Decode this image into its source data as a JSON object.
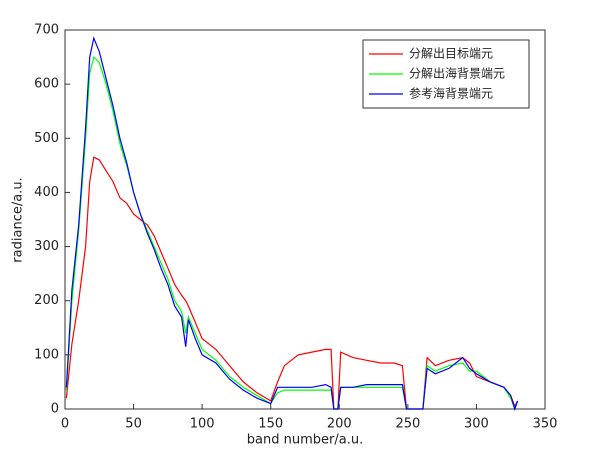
{
  "chart_data": {
    "type": "line",
    "xlabel": "band number/a.u.",
    "ylabel": "radiance/a.u.",
    "x": [
      1,
      5,
      10,
      15,
      18,
      21,
      25,
      30,
      35,
      40,
      45,
      50,
      55,
      60,
      65,
      70,
      75,
      80,
      85,
      88,
      90,
      95,
      100,
      110,
      120,
      130,
      140,
      150,
      155,
      160,
      170,
      180,
      190,
      194,
      196,
      199,
      201,
      210,
      220,
      230,
      240,
      246,
      249,
      261,
      264,
      270,
      280,
      290,
      295,
      300,
      310,
      320,
      325,
      328,
      330
    ],
    "series": [
      {
        "name": "分解出目标端元",
        "color": "#ff0000",
        "values": [
          20,
          120,
          200,
          300,
          420,
          465,
          460,
          440,
          420,
          390,
          380,
          360,
          350,
          340,
          320,
          290,
          260,
          230,
          210,
          200,
          190,
          160,
          130,
          110,
          80,
          50,
          30,
          15,
          50,
          80,
          100,
          105,
          110,
          110,
          0,
          0,
          105,
          95,
          90,
          85,
          85,
          80,
          0,
          0,
          95,
          80,
          90,
          95,
          85,
          60,
          50,
          40,
          25,
          5,
          15
        ]
      },
      {
        "name": "分解出海背景端元",
        "color": "#00ff00",
        "values": [
          35,
          200,
          330,
          500,
          620,
          650,
          640,
          600,
          550,
          490,
          450,
          400,
          360,
          330,
          300,
          270,
          240,
          200,
          180,
          140,
          170,
          140,
          110,
          90,
          60,
          40,
          25,
          10,
          30,
          35,
          35,
          35,
          35,
          35,
          0,
          0,
          40,
          40,
          40,
          40,
          40,
          40,
          0,
          0,
          80,
          70,
          80,
          85,
          70,
          70,
          50,
          40,
          20,
          0,
          15
        ]
      },
      {
        "name": "参考海背景端元",
        "color": "#0000ff",
        "values": [
          40,
          220,
          340,
          520,
          650,
          685,
          660,
          610,
          560,
          500,
          455,
          400,
          360,
          325,
          295,
          260,
          230,
          190,
          170,
          115,
          165,
          130,
          100,
          85,
          55,
          35,
          20,
          10,
          40,
          40,
          40,
          40,
          45,
          40,
          0,
          0,
          40,
          40,
          45,
          45,
          45,
          45,
          0,
          0,
          75,
          65,
          75,
          95,
          75,
          65,
          50,
          40,
          25,
          0,
          15
        ]
      }
    ],
    "xlim": [
      0,
      350
    ],
    "xticks": [
      0,
      50,
      100,
      150,
      200,
      250,
      300,
      350
    ],
    "ylim": [
      0,
      700
    ],
    "yticks": [
      0,
      100,
      200,
      300,
      400,
      500,
      600,
      700
    ],
    "legend": "upper right"
  }
}
